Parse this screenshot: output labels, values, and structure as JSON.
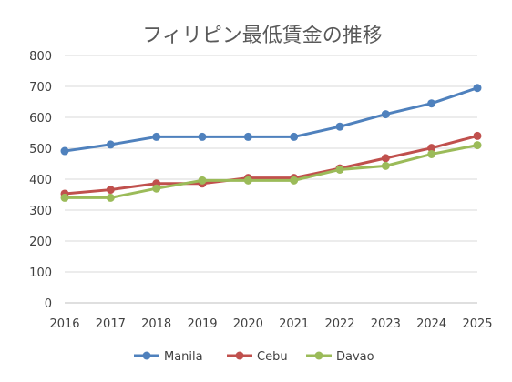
{
  "chart_data": {
    "type": "line",
    "title": "フィリピン最低賃金の推移",
    "xlabel": "",
    "ylabel": "",
    "categories": [
      "2016",
      "2017",
      "2018",
      "2019",
      "2020",
      "2021",
      "2022",
      "2023",
      "2024",
      "2025"
    ],
    "ylim": [
      0,
      800
    ],
    "yticks": [
      0,
      100,
      200,
      300,
      400,
      500,
      600,
      700,
      800
    ],
    "grid": true,
    "legend_position": "bottom",
    "series": [
      {
        "name": "Manila",
        "color": "#4f81bd",
        "values": [
          491,
          512,
          537,
          537,
          537,
          537,
          570,
          610,
          645,
          695
        ]
      },
      {
        "name": "Cebu",
        "color": "#c0504d",
        "values": [
          353,
          366,
          386,
          386,
          404,
          404,
          435,
          468,
          501,
          540
        ]
      },
      {
        "name": "Davao",
        "color": "#9bbb59",
        "values": [
          340,
          340,
          370,
          396,
          396,
          396,
          431,
          443,
          481,
          510
        ]
      }
    ]
  }
}
